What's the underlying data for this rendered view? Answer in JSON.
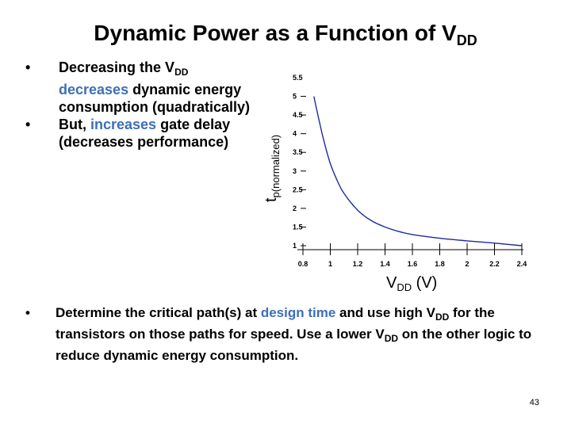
{
  "slide": {
    "title_main": "Dynamic Power as a Function of V",
    "title_sub": "DD",
    "page_number": "43"
  },
  "bullets_top": [
    {
      "p1": "Decreasing the V",
      "sub": "DD",
      "hl": "decreases",
      "p2": " dynamic energy consumption (quadratically)"
    },
    {
      "p1": "But, ",
      "hl": "increases",
      "p2": " gate delay (decreases performance)"
    }
  ],
  "bullet_bottom": {
    "p1": "Determine the critical path(s) at ",
    "hl": "design time",
    "p2": " and use high V",
    "sub1": "DD",
    "p3": " for the transistors on those paths for speed.  Use a lower V",
    "sub2": "DD",
    "p4": " on the other logic to reduce dynamic energy consumption."
  },
  "chart_data": {
    "type": "line",
    "ylabel_main": "t",
    "ylabel_sub": "p(normalized)",
    "xlabel_main": "V",
    "xlabel_sub": "DD",
    "xlabel_unit": " (V)",
    "x_ticks": [
      "0.8",
      "1",
      "1.2",
      "1.4",
      "1.6",
      "1.8",
      "2",
      "2.2",
      "2.4"
    ],
    "y_ticks": [
      "1",
      "1.5",
      "2",
      "2.5",
      "3",
      "3.5",
      "4",
      "4.5",
      "5",
      "5.5"
    ],
    "xlim": [
      0.8,
      2.4
    ],
    "ylim": [
      1,
      5.5
    ],
    "line_color": "#1f2a9c",
    "series": [
      {
        "x": [
          0.88,
          0.9,
          0.95,
          1.0,
          1.05,
          1.1,
          1.2,
          1.3,
          1.4,
          1.5,
          1.6,
          1.8,
          2.0,
          2.2,
          2.4
        ],
        "y": [
          5.0,
          4.65,
          3.85,
          3.2,
          2.75,
          2.4,
          1.95,
          1.67,
          1.5,
          1.38,
          1.3,
          1.2,
          1.13,
          1.07,
          1.0
        ]
      }
    ]
  }
}
